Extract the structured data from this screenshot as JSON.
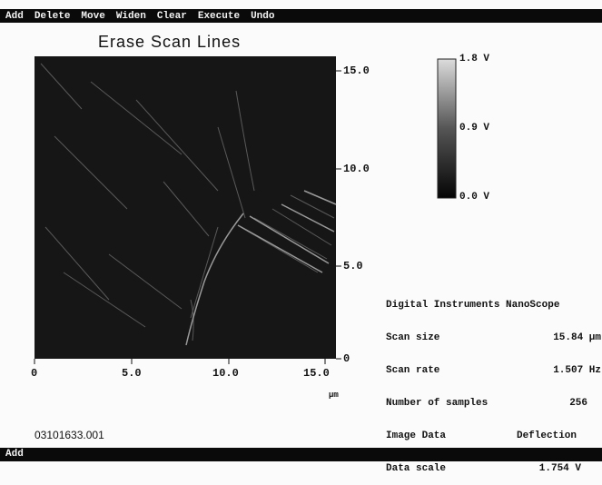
{
  "menu": [
    "Add",
    "Delete",
    "Move",
    "Widen",
    "Clear",
    "Execute",
    "Undo"
  ],
  "title": "Erase Scan Lines",
  "image": {
    "y_ticks": [
      "15.0",
      "10.0",
      "5.0",
      "0"
    ],
    "x_ticks": [
      "0",
      "5.0",
      "10.0",
      "15.0"
    ],
    "x_unit": "µm"
  },
  "color_scale": [
    "1.8 V",
    "0.9 V",
    "0.0 V"
  ],
  "info": {
    "header": "Digital Instruments NanoScope",
    "rows": [
      [
        "Scan size",
        "15.84 µm"
      ],
      [
        "Scan rate",
        "1.507 Hz"
      ],
      [
        "Number of samples",
        "256"
      ],
      [
        "Image Data",
        "Deflection"
      ],
      [
        "Data scale",
        "1.754 V"
      ]
    ]
  },
  "filename": "03101633.001",
  "status": "Add"
}
